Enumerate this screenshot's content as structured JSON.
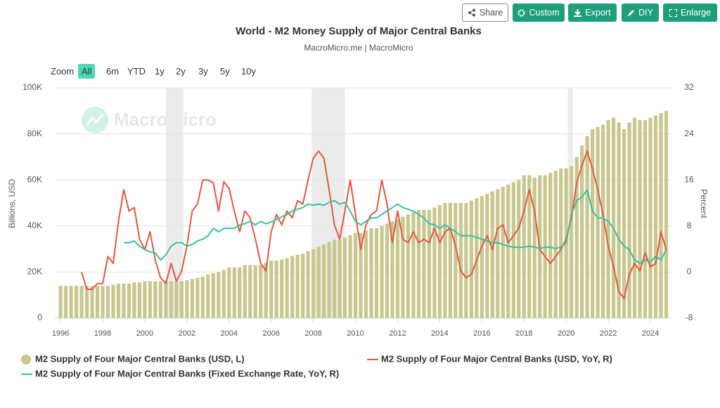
{
  "toolbar": {
    "buttons": [
      "Share",
      "Custom",
      "Export",
      "DIY",
      "Enlarge"
    ]
  },
  "range_selector": {
    "label": "Zoom",
    "buttons": [
      "All",
      "6m",
      "YTD",
      "1y",
      "2y",
      "3y",
      "5y",
      "10y"
    ],
    "active": 0
  },
  "chart_data": {
    "type": "combo",
    "title": "World - M2 Money Supply of Major Central Banks",
    "subtitle": "MacroMicro.me | MacroMicro",
    "watermark": "MacroMicro",
    "y_label": "Billions, USD",
    "y2_label": "Percent",
    "grid": true,
    "xlim": [
      1995.73,
      2025
    ],
    "xticks": [
      1996,
      1998,
      2000,
      2002,
      2004,
      2006,
      2008,
      2010,
      2012,
      2014,
      2016,
      2018,
      2020,
      2022,
      2024
    ],
    "ylim": [
      0,
      100000
    ],
    "yticks": [
      0,
      {
        "value": 20000,
        "label": "20K"
      },
      {
        "value": 40000,
        "label": "40K"
      },
      {
        "value": 60000,
        "label": "60K"
      },
      {
        "value": 80000,
        "label": "80K"
      },
      {
        "value": 100000,
        "label": "100K"
      }
    ],
    "y2lim": [
      -8,
      32
    ],
    "y2ticks": [
      -8,
      0,
      8,
      16,
      24,
      32
    ],
    "shaded_ranges": [
      [
        2001,
        2001.83
      ],
      [
        2007.92,
        2009.5
      ],
      [
        2020.08,
        2020.33
      ]
    ],
    "shade_color": "#ececec",
    "x": [
      1996,
      1996.25,
      1996.5,
      1996.75,
      1997,
      1997.25,
      1997.5,
      1997.75,
      1998,
      1998.25,
      1998.5,
      1998.75,
      1999,
      1999.25,
      1999.5,
      1999.75,
      2000,
      2000.25,
      2000.5,
      2000.75,
      2001,
      2001.25,
      2001.5,
      2001.75,
      2002,
      2002.25,
      2002.5,
      2002.75,
      2003,
      2003.25,
      2003.5,
      2003.75,
      2004,
      2004.25,
      2004.5,
      2004.75,
      2005,
      2005.25,
      2005.5,
      2005.75,
      2006,
      2006.25,
      2006.5,
      2006.75,
      2007,
      2007.25,
      2007.5,
      2007.75,
      2008,
      2008.25,
      2008.5,
      2008.75,
      2009,
      2009.25,
      2009.5,
      2009.75,
      2010,
      2010.25,
      2010.5,
      2010.75,
      2011,
      2011.25,
      2011.5,
      2011.75,
      2012,
      2012.25,
      2012.5,
      2012.75,
      2013,
      2013.25,
      2013.5,
      2013.75,
      2014,
      2014.25,
      2014.5,
      2014.75,
      2015,
      2015.25,
      2015.5,
      2015.75,
      2016,
      2016.25,
      2016.5,
      2016.75,
      2017,
      2017.25,
      2017.5,
      2017.75,
      2018,
      2018.25,
      2018.5,
      2018.75,
      2019,
      2019.25,
      2019.5,
      2019.75,
      2020,
      2020.25,
      2020.5,
      2020.75,
      2021,
      2021.25,
      2021.5,
      2021.75,
      2022,
      2022.25,
      2022.5,
      2022.75,
      2023,
      2023.25,
      2023.5,
      2023.75,
      2024,
      2024.25,
      2024.5,
      2024.75
    ],
    "series": [
      {
        "name": "M2 Supply of Four Major Central Banks (USD, L)",
        "type": "bar",
        "axis": "y",
        "color": "#c9c78f",
        "values": [
          14000,
          14000,
          14000,
          14000,
          14000,
          14000,
          14000,
          14000,
          14000,
          14000,
          14500,
          15000,
          15000,
          15000,
          15500,
          15500,
          16000,
          16000,
          16000,
          16000,
          16000,
          16000,
          16000,
          16000,
          16500,
          17000,
          17500,
          18000,
          19000,
          19500,
          20000,
          21000,
          22000,
          22000,
          22000,
          23000,
          23000,
          23000,
          23000,
          24000,
          25000,
          25000,
          25500,
          26000,
          27000,
          27500,
          28000,
          29000,
          30000,
          31000,
          32000,
          33000,
          34000,
          34000,
          35000,
          36000,
          37000,
          37000,
          38000,
          39000,
          39000,
          40000,
          41000,
          42000,
          43000,
          44000,
          45000,
          46000,
          47000,
          47000,
          47000,
          48000,
          49000,
          50000,
          50000,
          50000,
          50000,
          50000,
          51000,
          52000,
          53000,
          54000,
          55000,
          56000,
          57000,
          58000,
          59000,
          60000,
          62000,
          62000,
          61000,
          62000,
          62000,
          63000,
          64000,
          65000,
          65000,
          66000,
          70000,
          75000,
          79000,
          82000,
          83000,
          84000,
          86000,
          87000,
          85000,
          82000,
          85000,
          87000,
          86000,
          86000,
          87000,
          88000,
          89000,
          90000
        ]
      },
      {
        "name": "M2 Supply of Four Major Central Banks (USD, YoY, R)",
        "type": "line",
        "axis": "y2",
        "color": "#e8563f",
        "values": [
          null,
          null,
          null,
          null,
          0,
          -3,
          -3,
          -2,
          -2,
          2.7,
          1.5,
          8.8,
          14.3,
          10.6,
          11.2,
          5.7,
          3.9,
          7,
          2,
          -1,
          -2,
          1.5,
          -1.6,
          0.2,
          4.5,
          10.6,
          11.8,
          16,
          16,
          15.5,
          10.6,
          15.7,
          14.5,
          10.6,
          7,
          10.6,
          9.4,
          5.7,
          1.5,
          0.2,
          7,
          10,
          8.2,
          10.6,
          9.4,
          12.4,
          11.8,
          16,
          19.8,
          21,
          19.8,
          14.3,
          8.2,
          5.7,
          10.6,
          16,
          10,
          3.9,
          8.2,
          10,
          10.6,
          16,
          11.8,
          5.1,
          10.6,
          5.7,
          5.1,
          7,
          5.1,
          5.7,
          5.1,
          7.6,
          5.1,
          7,
          7.6,
          4.5,
          0.2,
          -1,
          -0.4,
          2,
          4.5,
          6.3,
          3.9,
          7.6,
          8.2,
          5.1,
          6.3,
          7.6,
          10.6,
          14.3,
          10.6,
          3.9,
          2.7,
          1.5,
          2.7,
          3.9,
          5.7,
          9.4,
          15.5,
          18.5,
          21,
          17.9,
          14.3,
          10,
          4.5,
          0.9,
          -3.4,
          -4.6,
          -0.4,
          1.5,
          0.2,
          3.3,
          0.9,
          1.5,
          7,
          3.9
        ]
      },
      {
        "name": "M2 Supply of Four Major Central Banks (Fixed Exchange Rate, YoY, R)",
        "type": "line",
        "axis": "y2",
        "color": "#3cbf9c",
        "values": [
          null,
          null,
          null,
          null,
          null,
          null,
          null,
          null,
          null,
          null,
          null,
          null,
          5.1,
          5.1,
          5.4,
          4.5,
          3.9,
          3.5,
          3.3,
          2.1,
          3,
          4.5,
          5.1,
          5.1,
          4.5,
          4.8,
          5.4,
          5.7,
          6.3,
          7.6,
          7,
          7.6,
          7.6,
          7.6,
          8.2,
          8.4,
          8.8,
          8.2,
          8.8,
          8.4,
          8.7,
          9.1,
          9.6,
          10,
          10.6,
          10.9,
          11.2,
          11.8,
          11.6,
          11.8,
          11.6,
          12.1,
          12.4,
          11.8,
          12.1,
          10.6,
          8.8,
          8.2,
          8.8,
          9.4,
          9.4,
          10,
          10.6,
          11.2,
          11.8,
          11.2,
          10.9,
          10.6,
          10,
          9.4,
          8.4,
          8.2,
          7.6,
          8.2,
          7.6,
          7,
          6.3,
          6.3,
          6.3,
          6,
          5.7,
          5.4,
          5.1,
          5.1,
          4.8,
          4.5,
          4.3,
          4.3,
          4.3,
          4.5,
          4.3,
          4.1,
          4.3,
          4.3,
          4.1,
          4.3,
          5.1,
          10,
          12.4,
          13,
          14.3,
          10.6,
          9.4,
          9.4,
          8.8,
          7.6,
          5.7,
          4.5,
          3.9,
          2.1,
          1.5,
          2.1,
          1.8,
          2.7,
          2.1,
          3.9
        ]
      }
    ]
  }
}
